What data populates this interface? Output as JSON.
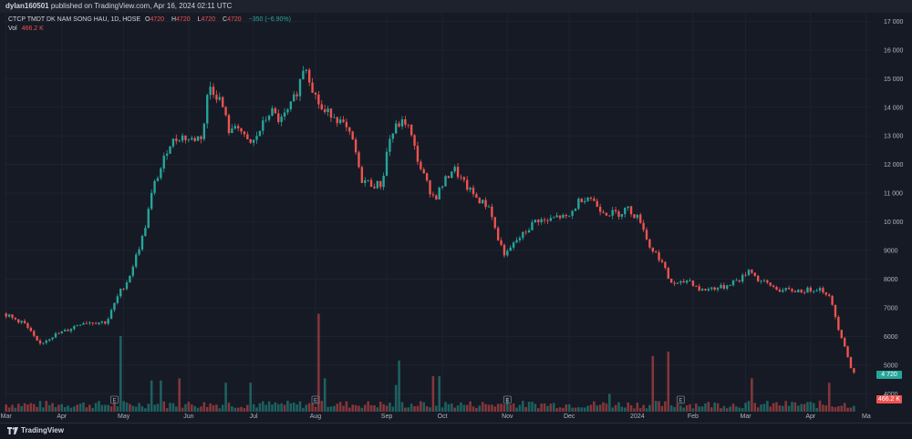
{
  "header": {
    "author": "dylan160501",
    "published_text": "published on TradingView.com, Apr 16, 2024 02:11 UTC"
  },
  "legend": {
    "symbol": "CTCP TMDT DK NAM SONG HAU, 1D, HOSE",
    "open_label": "O",
    "open": "4720",
    "high_label": "H",
    "high": "4720",
    "low_label": "L",
    "low": "4720",
    "close_label": "C",
    "close": "4720",
    "change": "−350 (−6.90%)",
    "volume_label": "Vol",
    "volume": "466.2 K"
  },
  "price_tags": {
    "last_price": "4 720",
    "last_volume": "466.2 K"
  },
  "footer": {
    "brand": "TradingView"
  },
  "colors": {
    "up": "#26a69a",
    "down": "#ef5350",
    "background": "#161a25",
    "grid": "#1f2331",
    "text": "#b2b5be"
  },
  "chart_data": {
    "type": "candlestick",
    "ylim": [
      3500,
      17300
    ],
    "y_ticks": [
      4000,
      5000,
      6000,
      7000,
      8000,
      9000,
      10000,
      11000,
      12000,
      13000,
      14000,
      15000,
      16000,
      17000
    ],
    "y_tick_labels": [
      "4000",
      "5000",
      "6000",
      "7000",
      "8000",
      "9000",
      "10 000",
      "11 000",
      "12 000",
      "13 000",
      "14 000",
      "15 000",
      "16 000",
      "17 000"
    ],
    "x_labels": [
      "Mar",
      "Apr",
      "May",
      "Jun",
      "Jul",
      "Aug",
      "Sep",
      "Oct",
      "Nov",
      "Dec",
      "2024",
      "Feb",
      "Mar",
      "Apr",
      "Ma"
    ],
    "x_label_index": [
      0,
      18,
      38,
      59,
      80,
      100,
      123,
      141,
      162,
      182,
      204,
      222,
      239,
      260,
      278
    ],
    "earnings_index": [
      35,
      100,
      162,
      218
    ],
    "earnings_label": "E",
    "keypoints": [
      [
        0,
        6800
      ],
      [
        2,
        6650
      ],
      [
        6,
        6500
      ],
      [
        9,
        6050
      ],
      [
        11,
        5700
      ],
      [
        15,
        6000
      ],
      [
        20,
        6200
      ],
      [
        25,
        6500
      ],
      [
        33,
        6500
      ],
      [
        37,
        7500
      ],
      [
        40,
        8000
      ],
      [
        45,
        9600
      ],
      [
        48,
        11200
      ],
      [
        51,
        12000
      ],
      [
        53,
        12700
      ],
      [
        57,
        13000
      ],
      [
        60,
        12850
      ],
      [
        64,
        13000
      ],
      [
        66,
        14800
      ],
      [
        70,
        14200
      ],
      [
        73,
        13000
      ],
      [
        75,
        13500
      ],
      [
        78,
        12800
      ],
      [
        80,
        12700
      ],
      [
        83,
        13300
      ],
      [
        86,
        13900
      ],
      [
        89,
        13500
      ],
      [
        92,
        13900
      ],
      [
        95,
        14700
      ],
      [
        97,
        15600
      ],
      [
        100,
        14500
      ],
      [
        103,
        13800
      ],
      [
        106,
        13800
      ],
      [
        110,
        13300
      ],
      [
        113,
        12700
      ],
      [
        115,
        11500
      ],
      [
        119,
        11300
      ],
      [
        122,
        11300
      ],
      [
        124,
        12800
      ],
      [
        127,
        13400
      ],
      [
        130,
        13500
      ],
      [
        134,
        12000
      ],
      [
        137,
        11200
      ],
      [
        139,
        10800
      ],
      [
        141,
        11200
      ],
      [
        145,
        11900
      ],
      [
        148,
        11400
      ],
      [
        151,
        11000
      ],
      [
        154,
        10700
      ],
      [
        157,
        10500
      ],
      [
        159,
        9500
      ],
      [
        162,
        8800
      ],
      [
        165,
        9300
      ],
      [
        168,
        9600
      ],
      [
        172,
        10100
      ],
      [
        175,
        10000
      ],
      [
        179,
        10200
      ],
      [
        182,
        10100
      ],
      [
        186,
        10800
      ],
      [
        189,
        10900
      ],
      [
        192,
        10500
      ],
      [
        195,
        10300
      ],
      [
        199,
        10300
      ],
      [
        201,
        10500
      ],
      [
        206,
        10000
      ],
      [
        208,
        9200
      ],
      [
        212,
        8700
      ],
      [
        215,
        7900
      ],
      [
        218,
        7800
      ],
      [
        221,
        8000
      ],
      [
        225,
        7600
      ],
      [
        229,
        7700
      ],
      [
        232,
        7700
      ],
      [
        235,
        7900
      ],
      [
        238,
        8000
      ],
      [
        241,
        8400
      ],
      [
        243,
        8000
      ],
      [
        247,
        7800
      ],
      [
        251,
        7600
      ],
      [
        255,
        7600
      ],
      [
        259,
        7600
      ],
      [
        263,
        7700
      ],
      [
        266,
        7500
      ],
      [
        268,
        6900
      ],
      [
        270,
        6100
      ],
      [
        271,
        5900
      ],
      [
        272,
        5500
      ],
      [
        273,
        5070
      ],
      [
        274,
        4720
      ]
    ],
    "volume_peaks": [
      [
        37,
        3.4
      ],
      [
        47,
        1.4
      ],
      [
        50,
        1.4
      ],
      [
        56,
        1.5
      ],
      [
        71,
        1.3
      ],
      [
        79,
        1.3
      ],
      [
        101,
        4.4
      ],
      [
        103,
        1.5
      ],
      [
        126,
        1.2
      ],
      [
        127,
        2.3
      ],
      [
        138,
        1.6
      ],
      [
        140,
        1.6
      ],
      [
        162,
        0.6
      ],
      [
        195,
        0.8
      ],
      [
        209,
        2.5
      ],
      [
        214,
        2.7
      ],
      [
        241,
        1.5
      ],
      [
        266,
        1.3
      ]
    ]
  }
}
